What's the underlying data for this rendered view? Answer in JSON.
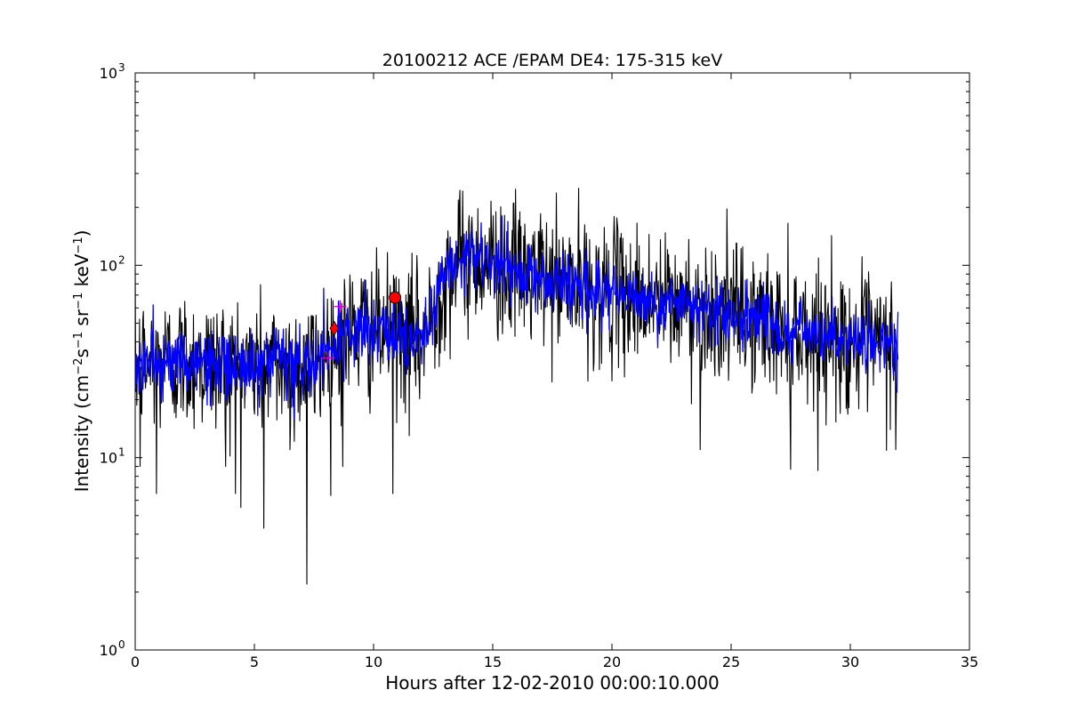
{
  "chart_data": {
    "type": "line",
    "title": "20100212 ACE /EPAM DE4: 175-315 keV",
    "xlabel": "Hours after 12-02-2010 00:00:10.000",
    "ylabel_parts": {
      "prefix": "Intensity (cm",
      "exp1": "−2",
      "s": "s",
      "exp2": "−1",
      "sr": " sr",
      "exp3": "−1",
      "kev": " keV",
      "exp4": "−1",
      "suffix": ")"
    },
    "xlim": [
      0,
      35
    ],
    "ylim": [
      1,
      1000
    ],
    "yscale": "log",
    "x_ticks": [
      0,
      5,
      10,
      15,
      20,
      25,
      30,
      35
    ],
    "x_tick_labels": [
      "0",
      "5",
      "10",
      "15",
      "20",
      "25",
      "30",
      "35"
    ],
    "y_ticks": [
      1,
      10,
      100,
      1000
    ],
    "y_tick_labels": [
      {
        "base": "10",
        "exp": "0"
      },
      {
        "base": "10",
        "exp": "1"
      },
      {
        "base": "10",
        "exp": "2"
      },
      {
        "base": "10",
        "exp": "3"
      }
    ],
    "grid": false,
    "series": [
      {
        "role": "raw",
        "color": "#000000",
        "profile": [
          [
            0,
            30
          ],
          [
            2,
            32
          ],
          [
            4,
            30
          ],
          [
            6,
            30
          ],
          [
            7.5,
            30
          ],
          [
            8.3,
            38
          ],
          [
            9,
            45
          ],
          [
            10,
            45
          ],
          [
            11,
            43
          ],
          [
            12,
            42
          ],
          [
            12.5,
            55
          ],
          [
            13,
            90
          ],
          [
            14,
            110
          ],
          [
            15,
            100
          ],
          [
            17,
            85
          ],
          [
            20,
            72
          ],
          [
            22,
            65
          ],
          [
            25,
            55
          ],
          [
            28,
            45
          ],
          [
            30,
            40
          ],
          [
            32,
            38
          ]
        ],
        "noise_spread": 0.42,
        "dropouts": [
          [
            0.2,
            9
          ],
          [
            0.9,
            6.5
          ],
          [
            5.4,
            4.3
          ],
          [
            7.2,
            2.2
          ],
          [
            4.2,
            6.5
          ],
          [
            10.8,
            6.5
          ],
          [
            3.8,
            9
          ],
          [
            6.5,
            11
          ],
          [
            8.7,
            9
          ],
          [
            23.7,
            11
          ],
          [
            27.5,
            8.7
          ],
          [
            31.9,
            11
          ],
          [
            11.5,
            13
          ],
          [
            19.0,
            25
          ]
        ],
        "end_x": 32.0
      },
      {
        "role": "smoothed",
        "color": "#0000ff",
        "profile": [
          [
            0,
            30
          ],
          [
            2,
            32
          ],
          [
            4,
            30
          ],
          [
            6,
            30
          ],
          [
            7.5,
            30
          ],
          [
            8.3,
            38
          ],
          [
            9,
            45
          ],
          [
            10,
            45
          ],
          [
            11,
            43
          ],
          [
            12,
            42
          ],
          [
            12.5,
            55
          ],
          [
            13,
            90
          ],
          [
            14,
            110
          ],
          [
            15,
            100
          ],
          [
            17,
            85
          ],
          [
            20,
            72
          ],
          [
            22,
            65
          ],
          [
            25,
            55
          ],
          [
            28,
            45
          ],
          [
            30,
            40
          ],
          [
            32,
            38
          ]
        ],
        "noise_spread": 0.2,
        "end_x": 32.0
      }
    ],
    "markers": [
      {
        "x": 8.35,
        "y": 47,
        "shape": "diamond",
        "color": "#ff0000"
      },
      {
        "x": 10.9,
        "y": 68,
        "shape": "circle",
        "color": "#ff0000"
      },
      {
        "x": 8.6,
        "y": 61,
        "shape": "plus",
        "color": "#cc00cc"
      },
      {
        "x": 8.1,
        "y": 33,
        "shape": "plus",
        "color": "#cc00cc"
      }
    ]
  }
}
